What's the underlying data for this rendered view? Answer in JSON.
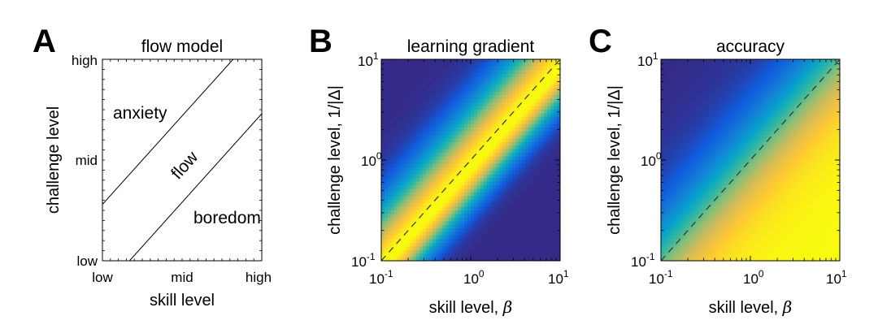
{
  "panels": [
    {
      "letter": "A",
      "title": "flow model",
      "xlabel": "skill level",
      "ylabel": "challenge level",
      "x_ticks": [
        "low",
        "mid",
        "high"
      ],
      "y_ticks": [
        "low",
        "mid",
        "high"
      ],
      "regions": [
        "anxiety",
        "flow",
        "boredom"
      ]
    },
    {
      "letter": "B",
      "title": "learning gradient",
      "xlabel_text": "skill level, ",
      "xlabel_symbol": "β",
      "ylabel": "challenge level, 1/|Δ|",
      "tick_base": "10",
      "x_tick_exponents": [
        "-1",
        "0",
        "1"
      ],
      "y_tick_exponents": [
        "-1",
        "0",
        "1"
      ]
    },
    {
      "letter": "C",
      "title": "accuracy",
      "xlabel_text": "skill level, ",
      "xlabel_symbol": "β",
      "ylabel": "challenge level, 1/|Δ|",
      "tick_base": "10",
      "x_tick_exponents": [
        "-1",
        "0",
        "1"
      ],
      "y_tick_exponents": [
        "-1",
        "0",
        "1"
      ]
    }
  ],
  "colors": {
    "colormap": [
      "#352a87",
      "#0f5cdd",
      "#1481d6",
      "#06a4ca",
      "#2eb7a4",
      "#87bf77",
      "#d1bb59",
      "#fec832",
      "#f9fb0e"
    ],
    "line": "#000000",
    "dashed": "#333333"
  },
  "chart_data": [
    {
      "type": "line",
      "panel": "A",
      "title": "flow model",
      "xlabel": "skill level",
      "ylabel": "challenge level",
      "x_categories": [
        "low",
        "mid",
        "high"
      ],
      "y_categories": [
        "low",
        "mid",
        "high"
      ],
      "series": [
        {
          "x": [
            0.0,
            0.82
          ],
          "y": [
            0.28,
            1.0
          ]
        },
        {
          "x": [
            0.17,
            1.0
          ],
          "y": [
            0.0,
            0.73
          ]
        }
      ],
      "annotations": [
        "anxiety",
        "flow",
        "boredom"
      ]
    },
    {
      "type": "heatmap",
      "panel": "B",
      "title": "learning gradient",
      "x_scale": "log",
      "y_scale": "log",
      "xlim": [
        0.1,
        10
      ],
      "ylim": [
        0.1,
        10
      ],
      "xlabel": "skill level, β",
      "ylabel": "challenge level, 1/|Δ|",
      "reference_line": {
        "style": "dashed",
        "x": [
          0.1,
          10
        ],
        "y": [
          0.1,
          10
        ]
      },
      "grid": false
    },
    {
      "type": "heatmap",
      "panel": "C",
      "title": "accuracy",
      "x_scale": "log",
      "y_scale": "log",
      "xlim": [
        0.1,
        10
      ],
      "ylim": [
        0.1,
        10
      ],
      "xlabel": "skill level, β",
      "ylabel": "challenge level, 1/|Δ|",
      "reference_line": {
        "style": "dashed",
        "x": [
          0.1,
          10
        ],
        "y": [
          0.1,
          10
        ]
      },
      "grid": false
    }
  ]
}
